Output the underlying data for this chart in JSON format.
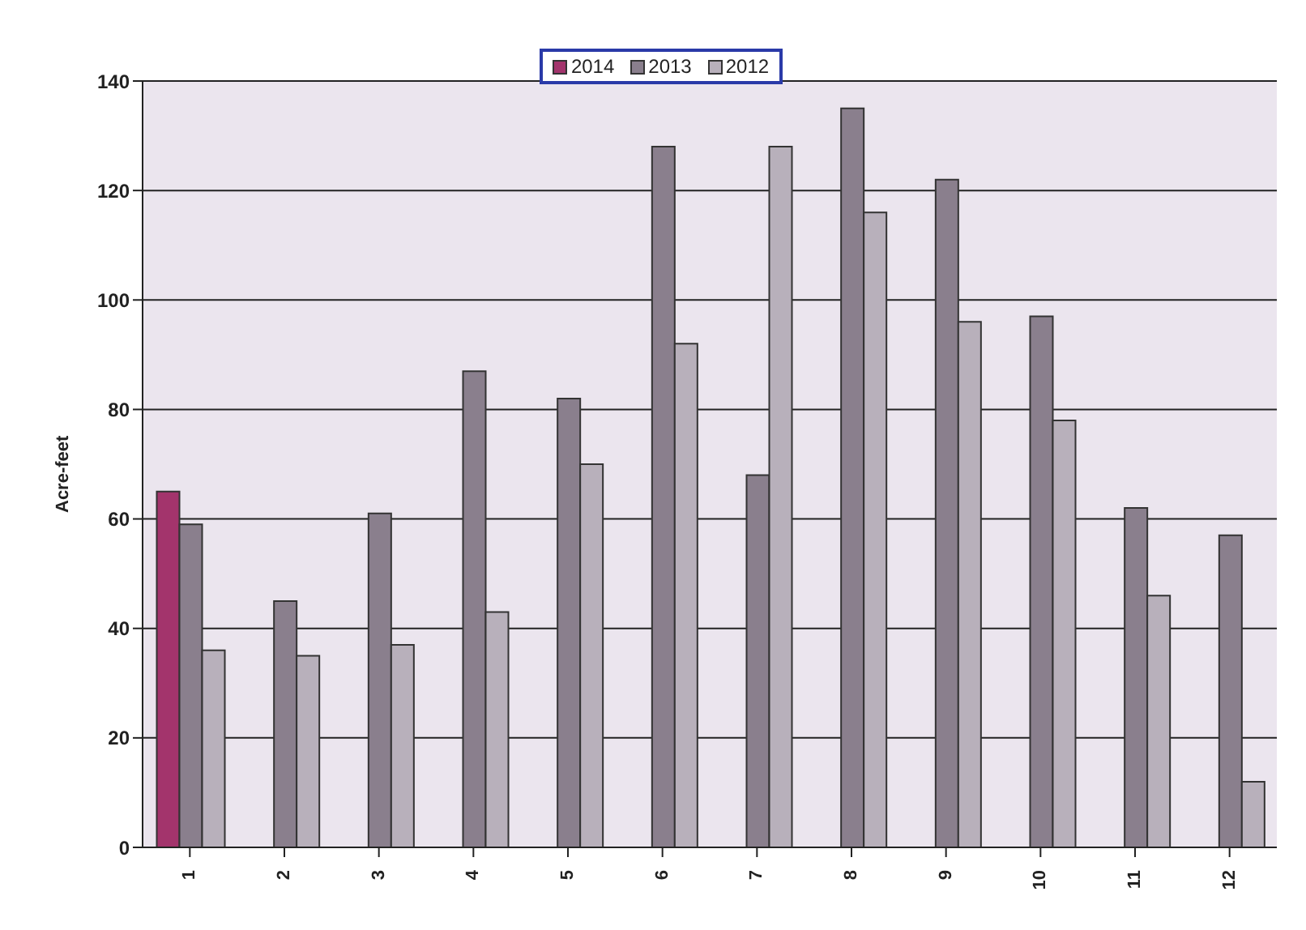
{
  "chart_data": {
    "type": "bar",
    "ylabel": "Acre-feet",
    "categories": [
      "1",
      "2",
      "3",
      "4",
      "5",
      "6",
      "7",
      "8",
      "9",
      "10",
      "11",
      "12"
    ],
    "series": [
      {
        "name": "2014",
        "color": "#a3346c",
        "values": [
          65,
          null,
          null,
          null,
          null,
          null,
          null,
          null,
          null,
          null,
          null,
          null
        ]
      },
      {
        "name": "2013",
        "color": "#8a7f8d",
        "values": [
          59,
          45,
          61,
          87,
          82,
          128,
          68,
          135,
          122,
          97,
          62,
          57
        ]
      },
      {
        "name": "2012",
        "color": "#b8b0bb",
        "values": [
          36,
          35,
          37,
          43,
          70,
          92,
          128,
          116,
          96,
          78,
          46,
          12
        ]
      }
    ],
    "ylim": [
      0,
      140
    ],
    "yticks": [
      0,
      20,
      40,
      60,
      80,
      100,
      120,
      140
    ],
    "grid": "y",
    "legend": "top"
  }
}
